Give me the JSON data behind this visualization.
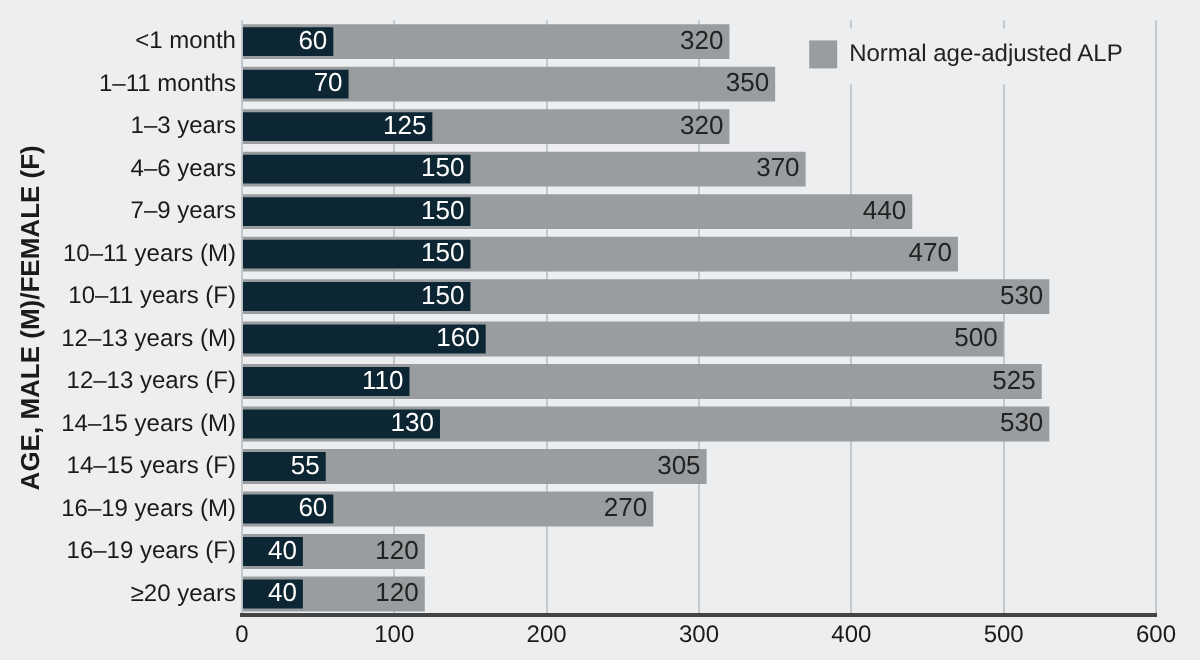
{
  "chart_data": {
    "type": "bar",
    "orientation": "horizontal",
    "ylabel": "AGE, MALE (M)/FEMALE (F)",
    "categories": [
      "<1 month",
      "1–11 months",
      "1–3 years",
      "4–6 years",
      "7–9 years",
      "10–11 years (M)",
      "10–11 years (F)",
      "12–13 years (M)",
      "12–13 years (F)",
      "14–15 years (M)",
      "14–15 years (F)",
      "16–19 years (M)",
      "16–19 years (F)",
      "≥20 years"
    ],
    "series": [
      {
        "color": "#0d2633",
        "values": [
          60,
          70,
          125,
          150,
          150,
          150,
          150,
          160,
          110,
          130,
          55,
          60,
          40,
          40
        ]
      },
      {
        "name": "Normal age-adjusted ALP",
        "color": "#9a9d9f",
        "values": [
          320,
          350,
          320,
          370,
          440,
          470,
          530,
          500,
          525,
          530,
          305,
          270,
          120,
          120
        ]
      }
    ],
    "xlim": [
      0,
      600
    ],
    "xticks": [
      0,
      100,
      200,
      300,
      400,
      500,
      600
    ],
    "grid": "x",
    "legend": "top right",
    "data_labels": true
  }
}
